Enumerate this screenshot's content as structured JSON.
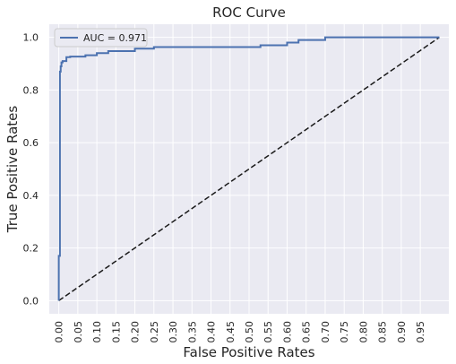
{
  "chart_data": {
    "type": "line",
    "title": "ROC Curve",
    "xlabel": "False Positive Rates",
    "ylabel": "True Positive Rates",
    "xlim": [
      -0.025,
      1.025
    ],
    "ylim": [
      -0.05,
      1.05
    ],
    "x_ticks": [
      0.0,
      0.05,
      0.1,
      0.15,
      0.2,
      0.25,
      0.3,
      0.35,
      0.4,
      0.45,
      0.5,
      0.55,
      0.6,
      0.65,
      0.7,
      0.75,
      0.8,
      0.85,
      0.9,
      0.95
    ],
    "x_tick_labels": [
      "0.00",
      "0.05",
      "0.10",
      "0.15",
      "0.20",
      "0.25",
      "0.30",
      "0.35",
      "0.40",
      "0.45",
      "0.50",
      "0.55",
      "0.60",
      "0.65",
      "0.70",
      "0.75",
      "0.80",
      "0.85",
      "0.90",
      "0.95"
    ],
    "y_ticks": [
      0.0,
      0.2,
      0.4,
      0.6,
      0.8,
      1.0
    ],
    "y_tick_labels": [
      "0.0",
      "0.2",
      "0.4",
      "0.6",
      "0.8",
      "1.0"
    ],
    "grid": true,
    "legend_position": "top-left",
    "series": [
      {
        "name": "AUC = 0.971",
        "color": "#4c72b0",
        "style": "solid",
        "x": [
          0.0,
          0.0,
          0.003,
          0.003,
          0.005,
          0.005,
          0.007,
          0.007,
          0.01,
          0.01,
          0.02,
          0.02,
          0.03,
          0.03,
          0.07,
          0.07,
          0.1,
          0.1,
          0.13,
          0.13,
          0.2,
          0.2,
          0.25,
          0.25,
          0.53,
          0.53,
          0.6,
          0.6,
          0.63,
          0.63,
          0.7,
          0.7,
          1.0
        ],
        "y": [
          0.0,
          0.17,
          0.17,
          0.87,
          0.87,
          0.89,
          0.89,
          0.905,
          0.905,
          0.91,
          0.91,
          0.925,
          0.925,
          0.927,
          0.927,
          0.932,
          0.932,
          0.94,
          0.94,
          0.948,
          0.948,
          0.957,
          0.957,
          0.963,
          0.963,
          0.97,
          0.97,
          0.98,
          0.98,
          0.99,
          0.99,
          1.0,
          1.0
        ]
      },
      {
        "name": "",
        "color": "#1a1a1a",
        "style": "dashed",
        "x": [
          0.0,
          1.0
        ],
        "y": [
          0.0,
          1.0
        ]
      }
    ]
  },
  "colors": {
    "plot_background": "#eaeaf2",
    "grid": "#ffffff",
    "text": "#262626"
  }
}
